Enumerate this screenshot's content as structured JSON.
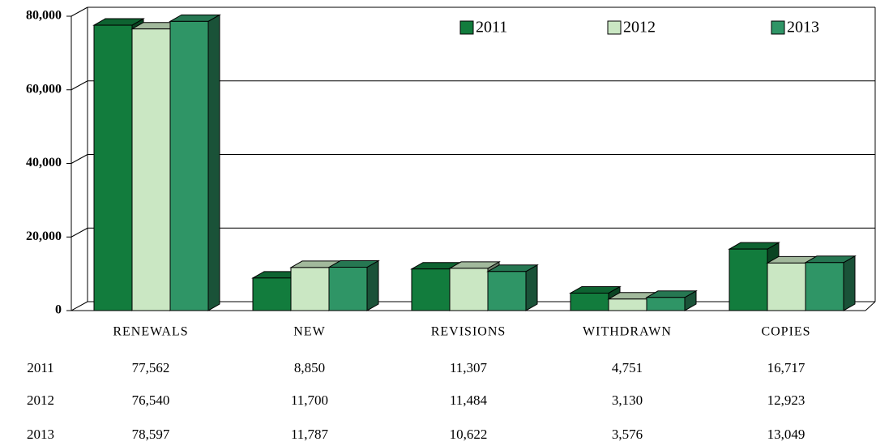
{
  "chart_data": {
    "type": "bar3d",
    "categories": [
      "RENEWALS",
      "NEW",
      "REVISIONS",
      "WITHDRAWN",
      "COPIES"
    ],
    "series": [
      {
        "name": "2011",
        "color": "#127c3d",
        "values": [
          77562,
          8850,
          11307,
          4751,
          16717
        ],
        "value_labels": [
          "77,562",
          "8,850",
          "11,307",
          "4,751",
          "16,717"
        ]
      },
      {
        "name": "2012",
        "color": "#cae7c3",
        "values": [
          76540,
          11700,
          11484,
          3130,
          12923
        ],
        "value_labels": [
          "76,540",
          "11,700",
          "11,484",
          "3,130",
          "12,923"
        ]
      },
      {
        "name": "2013",
        "color": "#2f9566",
        "values": [
          78597,
          11787,
          10622,
          3576,
          13049
        ],
        "value_labels": [
          "78,597",
          "11,787",
          "10,622",
          "3,576",
          "13,049"
        ]
      }
    ],
    "ylim": [
      0,
      80000
    ],
    "yticks": [
      0,
      {
        "value": 20000,
        "label": "20,000"
      },
      {
        "value": 40000,
        "label": "40,000"
      },
      {
        "value": 60000,
        "label": "60,000"
      },
      {
        "value": 80000,
        "label": "80,000"
      }
    ],
    "grid": true,
    "legend": "top",
    "data_table": true
  }
}
